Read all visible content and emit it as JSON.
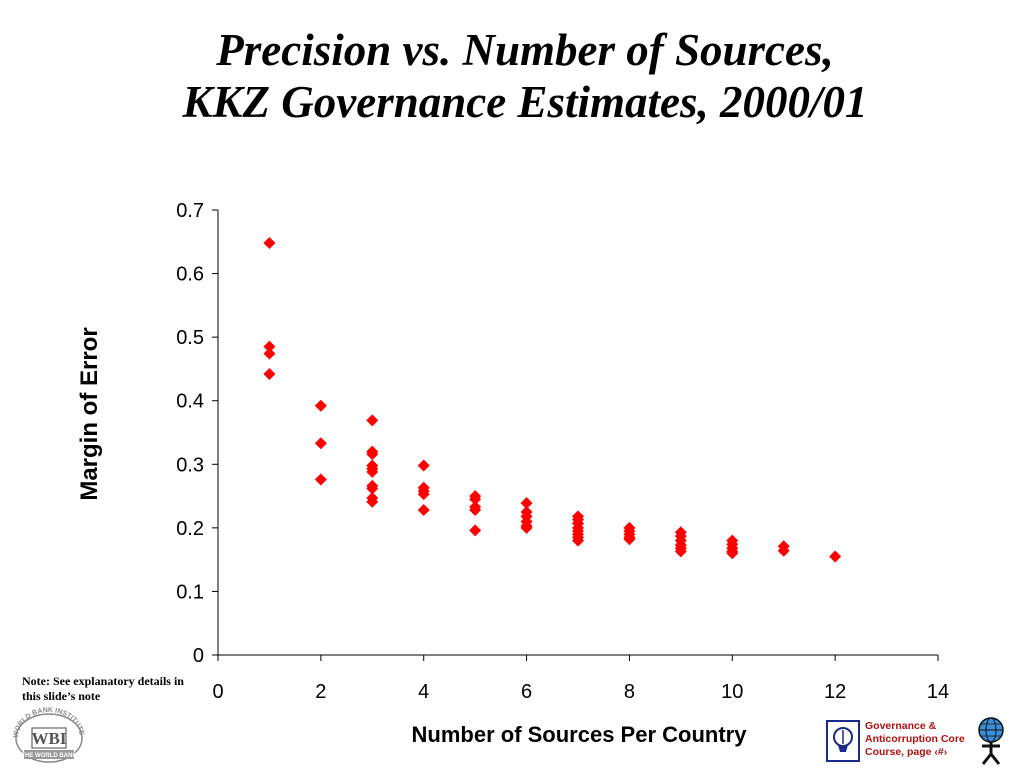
{
  "slide": {
    "title_line1": "Precision vs. Number of Sources,",
    "title_line2": "KKZ Governance Estimates, 2000/01",
    "note": "Note: See explanatory details in this slide’s note",
    "footer_line1": "Governance &",
    "footer_line2": "Anticorruption Core",
    "footer_line3": "Course, page ‹#›",
    "logo_text": "WBI",
    "logo_arc_text": "WORLD BANK INSTITUTE",
    "logo_banner_text": "THE WORLD BANK"
  },
  "colors": {
    "marker": "#ff0000",
    "axis": "#000000",
    "footer_text": "#b01010"
  },
  "chart_data": {
    "type": "scatter",
    "title": "",
    "xlabel": "Number of Sources Per Country",
    "ylabel": "Margin of Error",
    "xlim": [
      0,
      14
    ],
    "ylim": [
      0,
      0.7
    ],
    "xticks": [
      "0",
      "2",
      "4",
      "6",
      "8",
      "10",
      "12",
      "14"
    ],
    "yticks": [
      "0",
      "0.1",
      "0.2",
      "0.3",
      "0.4",
      "0.5",
      "0.6",
      "0.7"
    ],
    "grid": false,
    "legend": "none",
    "marker": "diamond",
    "series": [
      {
        "points": [
          [
            1,
            0.648
          ],
          [
            1,
            0.485
          ],
          [
            1,
            0.474
          ],
          [
            1,
            0.442
          ],
          [
            2,
            0.392
          ],
          [
            2,
            0.333
          ],
          [
            2,
            0.276
          ],
          [
            3,
            0.369
          ],
          [
            3,
            0.32
          ],
          [
            3,
            0.316
          ],
          [
            3,
            0.298
          ],
          [
            3,
            0.293
          ],
          [
            3,
            0.288
          ],
          [
            3,
            0.266
          ],
          [
            3,
            0.262
          ],
          [
            3,
            0.247
          ],
          [
            3,
            0.241
          ],
          [
            4,
            0.298
          ],
          [
            4,
            0.263
          ],
          [
            4,
            0.258
          ],
          [
            4,
            0.253
          ],
          [
            4,
            0.228
          ],
          [
            5,
            0.25
          ],
          [
            5,
            0.245
          ],
          [
            5,
            0.233
          ],
          [
            5,
            0.228
          ],
          [
            5,
            0.196
          ],
          [
            6,
            0.239
          ],
          [
            6,
            0.225
          ],
          [
            6,
            0.218
          ],
          [
            6,
            0.21
          ],
          [
            6,
            0.203
          ],
          [
            6,
            0.2
          ],
          [
            7,
            0.218
          ],
          [
            7,
            0.213
          ],
          [
            7,
            0.207
          ],
          [
            7,
            0.2
          ],
          [
            7,
            0.195
          ],
          [
            7,
            0.19
          ],
          [
            7,
            0.185
          ],
          [
            7,
            0.18
          ],
          [
            8,
            0.2
          ],
          [
            8,
            0.195
          ],
          [
            8,
            0.19
          ],
          [
            8,
            0.185
          ],
          [
            8,
            0.182
          ],
          [
            9,
            0.193
          ],
          [
            9,
            0.187
          ],
          [
            9,
            0.18
          ],
          [
            9,
            0.173
          ],
          [
            9,
            0.168
          ],
          [
            9,
            0.163
          ],
          [
            10,
            0.18
          ],
          [
            10,
            0.174
          ],
          [
            10,
            0.168
          ],
          [
            10,
            0.163
          ],
          [
            10,
            0.16
          ],
          [
            11,
            0.171
          ],
          [
            11,
            0.164
          ],
          [
            12,
            0.155
          ]
        ]
      }
    ]
  }
}
